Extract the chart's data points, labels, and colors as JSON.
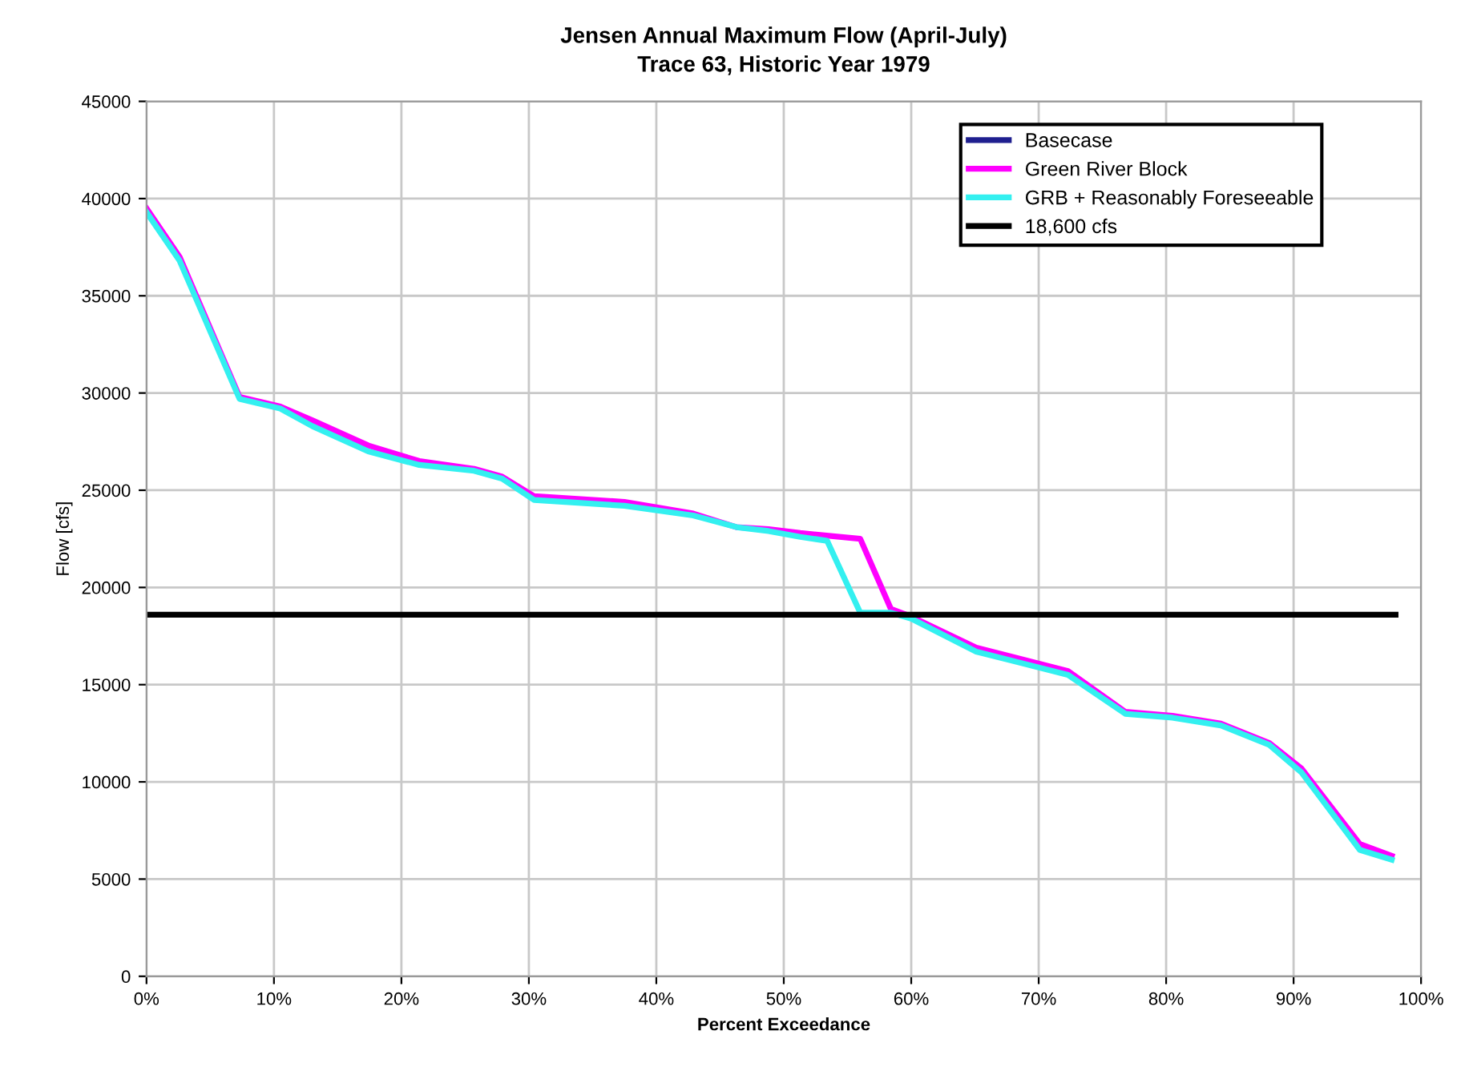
{
  "chart_data": {
    "type": "line",
    "title": "Jensen Annual Maximum Flow (April-July)",
    "subtitle": "Trace 63, Historic Year 1979",
    "xlabel": "Percent Exceedance",
    "ylabel": "Flow [cfs]",
    "xlim": [
      0,
      100
    ],
    "ylim": [
      0,
      45000
    ],
    "xticks": [
      {
        "value": 0,
        "label": "0%"
      },
      {
        "value": 10,
        "label": "10%"
      },
      {
        "value": 20,
        "label": "20%"
      },
      {
        "value": 30,
        "label": "30%"
      },
      {
        "value": 40,
        "label": "40%"
      },
      {
        "value": 50,
        "label": "50%"
      },
      {
        "value": 60,
        "label": "60%"
      },
      {
        "value": 70,
        "label": "70%"
      },
      {
        "value": 80,
        "label": "80%"
      },
      {
        "value": 90,
        "label": "90%"
      },
      {
        "value": 100,
        "label": "100%"
      }
    ],
    "yticks": [
      0,
      5000,
      10000,
      15000,
      20000,
      25000,
      30000,
      35000,
      40000,
      45000
    ],
    "grid": true,
    "legend": "top right",
    "marker": "none",
    "line_style": "solid",
    "series": [
      {
        "name": "Basecase",
        "color": "#1f1f8f"
      },
      {
        "name": "Green River Block",
        "color": "#ff00ff",
        "x": [
          0,
          2.6,
          7.3,
          10.5,
          13,
          17.4,
          21.4,
          25.7,
          27.9,
          30.4,
          37.5,
          42.9,
          46.3,
          48.8,
          51.3,
          56,
          58.4,
          60,
          65.1,
          72.3,
          76.8,
          80.5,
          84.3,
          88.1,
          90.6,
          95.2,
          97.7
        ],
        "values": [
          39500,
          37000,
          29800,
          29300,
          28600,
          27300,
          26500,
          26100,
          25700,
          24700,
          24400,
          23800,
          23100,
          23000,
          22800,
          22500,
          18900,
          18500,
          16900,
          15700,
          13600,
          13400,
          13000,
          12000,
          10700,
          6800,
          6200
        ]
      },
      {
        "name": "GRB + Reasonably Foreseeable",
        "color": "#33f0f0",
        "x": [
          0,
          2.6,
          7.3,
          10.5,
          13,
          17.4,
          21.4,
          25.7,
          27.9,
          30.4,
          37.5,
          42.9,
          46.3,
          48.8,
          51.3,
          53.4,
          56,
          58.4,
          60,
          65.1,
          72.3,
          76.8,
          80.5,
          84.3,
          88.1,
          90.6,
          95.2,
          97.7
        ],
        "values": [
          39300,
          36800,
          29700,
          29200,
          28300,
          27000,
          26300,
          26000,
          25600,
          24500,
          24200,
          23700,
          23100,
          22900,
          22600,
          22400,
          18700,
          18700,
          18400,
          16700,
          15500,
          13500,
          13300,
          12900,
          11900,
          10500,
          6500,
          6000
        ]
      },
      {
        "name": "18,600 cfs",
        "color": "#000000",
        "x": [
          0,
          98
        ],
        "values": [
          18600,
          18600
        ]
      }
    ]
  }
}
